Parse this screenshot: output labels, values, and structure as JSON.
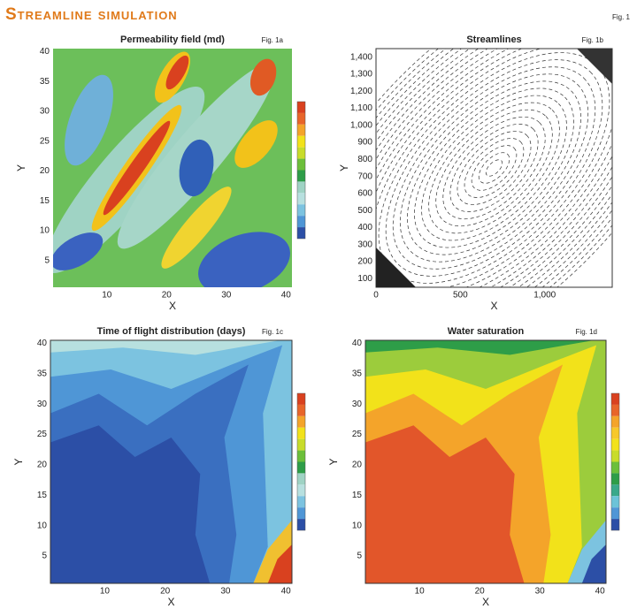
{
  "header": {
    "title": "Streamline simulation",
    "fig_label": "Fig. 1"
  },
  "panels": [
    {
      "title": "Permeability field (md)",
      "fig_label": "Fig. 1a",
      "x_label": "X",
      "y_label": "Y",
      "x_ticks": [
        "10",
        "20",
        "30",
        "40"
      ],
      "y_ticks": [
        "5",
        "10",
        "15",
        "20",
        "25",
        "30",
        "35",
        "40"
      ]
    },
    {
      "title": "Streamlines",
      "fig_label": "Fig. 1b",
      "x_label": "X",
      "y_label": "Y",
      "x_ticks": [
        "0",
        "500",
        "1,000"
      ],
      "y_ticks": [
        "100",
        "200",
        "300",
        "400",
        "500",
        "600",
        "700",
        "800",
        "900",
        "1,000",
        "1,100",
        "1,200",
        "1,300",
        "1,400"
      ]
    },
    {
      "title": "Time of flight distribution (days)",
      "fig_label": "Fig. 1c",
      "x_label": "X",
      "y_label": "Y",
      "x_ticks": [
        "10",
        "20",
        "30",
        "40"
      ],
      "y_ticks": [
        "5",
        "10",
        "15",
        "20",
        "25",
        "30",
        "35",
        "40"
      ]
    },
    {
      "title": "Water saturation",
      "fig_label": "Fig. 1d",
      "x_label": "X",
      "y_label": "Y",
      "x_ticks": [
        "10",
        "20",
        "30",
        "40"
      ],
      "y_ticks": [
        "5",
        "10",
        "15",
        "20",
        "25",
        "30",
        "35",
        "40"
      ]
    }
  ]
}
